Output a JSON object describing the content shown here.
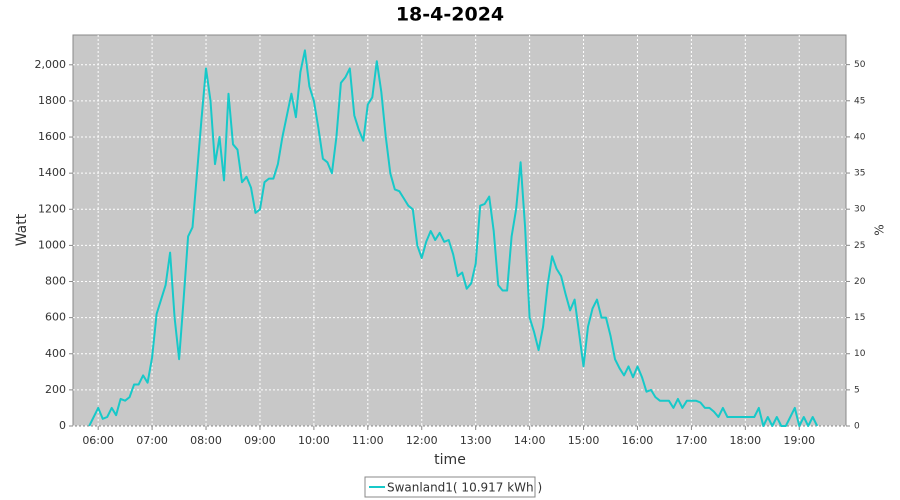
{
  "chart_data": {
    "type": "line",
    "title": "18-4-2024",
    "xlabel": "time",
    "ylabel": "Watt",
    "y2label": "%",
    "x": [
      "05:50",
      "06:00",
      "06:05",
      "06:10",
      "06:15",
      "06:20",
      "06:25",
      "06:30",
      "06:35",
      "06:40",
      "06:45",
      "06:50",
      "06:55",
      "07:00",
      "07:05",
      "07:10",
      "07:15",
      "07:20",
      "07:25",
      "07:30",
      "07:35",
      "07:40",
      "07:45",
      "07:50",
      "07:55",
      "08:00",
      "08:05",
      "08:10",
      "08:15",
      "08:20",
      "08:25",
      "08:30",
      "08:35",
      "08:40",
      "08:45",
      "08:50",
      "08:55",
      "09:00",
      "09:05",
      "09:10",
      "09:15",
      "09:20",
      "09:25",
      "09:30",
      "09:35",
      "09:40",
      "09:45",
      "09:50",
      "09:55",
      "10:00",
      "10:05",
      "10:10",
      "10:15",
      "10:20",
      "10:25",
      "10:30",
      "10:35",
      "10:40",
      "10:45",
      "10:50",
      "10:55",
      "11:00",
      "11:05",
      "11:10",
      "11:15",
      "11:20",
      "11:25",
      "11:30",
      "11:35",
      "11:40",
      "11:45",
      "11:50",
      "11:55",
      "12:00",
      "12:05",
      "12:10",
      "12:15",
      "12:20",
      "12:25",
      "12:30",
      "12:35",
      "12:40",
      "12:45",
      "12:50",
      "12:55",
      "13:00",
      "13:05",
      "13:10",
      "13:15",
      "13:20",
      "13:25",
      "13:30",
      "13:35",
      "13:40",
      "13:45",
      "13:50",
      "13:55",
      "14:00",
      "14:05",
      "14:10",
      "14:15",
      "14:20",
      "14:25",
      "14:30",
      "14:35",
      "14:40",
      "14:45",
      "14:50",
      "14:55",
      "15:00",
      "15:05",
      "15:10",
      "15:15",
      "15:20",
      "15:25",
      "15:30",
      "15:35",
      "15:40",
      "15:45",
      "15:50",
      "15:55",
      "16:00",
      "16:05",
      "16:10",
      "16:15",
      "16:20",
      "16:25",
      "16:30",
      "16:35",
      "16:40",
      "16:45",
      "16:50",
      "16:55",
      "17:00",
      "17:05",
      "17:10",
      "17:15",
      "17:20",
      "17:25",
      "17:30",
      "17:35",
      "17:40",
      "17:45",
      "17:50",
      "17:55",
      "18:00",
      "18:05",
      "18:10",
      "18:15",
      "18:20",
      "18:25",
      "18:30",
      "18:35",
      "18:40",
      "18:45",
      "18:50",
      "18:55",
      "19:00",
      "19:05",
      "19:10",
      "19:15",
      "19:20"
    ],
    "series": [
      {
        "name": "Swanland1( 10.917 kWh )",
        "color": "#17c9c9",
        "values": [
          0,
          100,
          40,
          50,
          100,
          60,
          150,
          140,
          160,
          230,
          230,
          280,
          240,
          380,
          620,
          700,
          780,
          960,
          600,
          370,
          700,
          1050,
          1100,
          1400,
          1700,
          1980,
          1800,
          1450,
          1600,
          1360,
          1840,
          1560,
          1530,
          1350,
          1380,
          1320,
          1180,
          1200,
          1350,
          1370,
          1370,
          1450,
          1600,
          1720,
          1840,
          1710,
          1960,
          2080,
          1880,
          1800,
          1650,
          1480,
          1460,
          1400,
          1600,
          1900,
          1930,
          1980,
          1720,
          1640,
          1580,
          1780,
          1820,
          2020,
          1850,
          1600,
          1400,
          1310,
          1300,
          1260,
          1220,
          1200,
          1000,
          930,
          1020,
          1080,
          1030,
          1070,
          1020,
          1030,
          950,
          830,
          850,
          760,
          790,
          900,
          1220,
          1230,
          1270,
          1080,
          780,
          750,
          750,
          1050,
          1200,
          1460,
          1100,
          600,
          520,
          420,
          550,
          780,
          940,
          870,
          830,
          730,
          640,
          700,
          520,
          330,
          550,
          650,
          700,
          600,
          600,
          500,
          370,
          320,
          280,
          330,
          270,
          330,
          270,
          190,
          200,
          160,
          140,
          140,
          140,
          100,
          150,
          100,
          140,
          140,
          140,
          130,
          100,
          100,
          80,
          50,
          100,
          50,
          50,
          50,
          50,
          50,
          50,
          50,
          100,
          0,
          50,
          0,
          50,
          0,
          0,
          50,
          100,
          0,
          50,
          0,
          50,
          0
        ]
      }
    ],
    "xlim": [
      "05:32",
      "19:52"
    ],
    "xticks": [
      "06:00",
      "07:00",
      "08:00",
      "09:00",
      "10:00",
      "11:00",
      "12:00",
      "13:00",
      "14:00",
      "15:00",
      "16:00",
      "17:00",
      "18:00",
      "19:00"
    ],
    "ylim": [
      0,
      2165
    ],
    "yticks": [
      0,
      200,
      400,
      600,
      800,
      1000,
      1200,
      1400,
      1600,
      1800,
      {
        "value": 2000,
        "label": "2,000"
      }
    ],
    "y2lim": [
      0,
      54.1
    ],
    "y2ticks": [
      0,
      5,
      10,
      15,
      20,
      25,
      30,
      35,
      40,
      45,
      50
    ],
    "grid": true
  }
}
